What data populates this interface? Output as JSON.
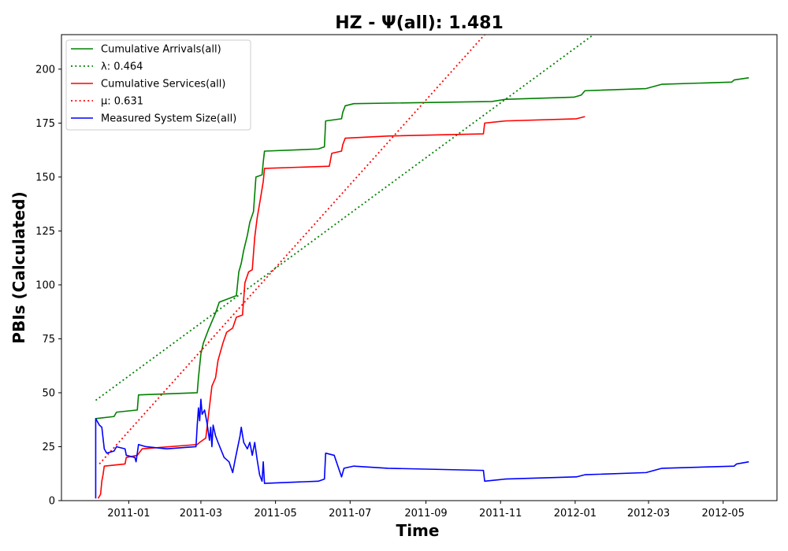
{
  "chart_data": {
    "type": "line",
    "title": "HZ -  Ψ(all): 1.481",
    "xlabel": "Time",
    "ylabel": "PBIs (Calculated)",
    "x_range": [
      "2010-11-07",
      "2012-06-14"
    ],
    "ylim": [
      0,
      216
    ],
    "x_ticks": [
      "2011-01-01",
      "2011-03-01",
      "2011-05-01",
      "2011-07-01",
      "2011-09-01",
      "2011-11-01",
      "2012-01-01",
      "2012-03-01",
      "2012-05-01"
    ],
    "x_tick_labels": [
      "2011-01",
      "2011-03",
      "2011-05",
      "2011-07",
      "2011-09",
      "2011-11",
      "2012-01",
      "2012-03",
      "2012-05"
    ],
    "y_ticks": [
      0,
      25,
      50,
      75,
      100,
      125,
      150,
      175,
      200
    ],
    "y_tick_labels": [
      "0",
      "25",
      "50",
      "75",
      "100",
      "125",
      "150",
      "175",
      "200"
    ],
    "grid": false,
    "legend_position": "top-left",
    "series": [
      {
        "name": "Cumulative Arrivals(all)",
        "color": "#008000",
        "style": "solid",
        "points": [
          [
            "2010-12-05",
            38
          ],
          [
            "2010-12-20",
            39
          ],
          [
            "2010-12-22",
            41
          ],
          [
            "2011-01-08",
            42
          ],
          [
            "2011-01-09",
            49
          ],
          [
            "2011-02-26",
            50
          ],
          [
            "2011-02-27",
            57
          ],
          [
            "2011-03-01",
            68
          ],
          [
            "2011-03-03",
            73
          ],
          [
            "2011-03-07",
            79
          ],
          [
            "2011-03-13",
            87
          ],
          [
            "2011-03-16",
            92
          ],
          [
            "2011-03-30",
            95
          ],
          [
            "2011-04-01",
            106
          ],
          [
            "2011-04-03",
            110
          ],
          [
            "2011-04-05",
            116
          ],
          [
            "2011-04-08",
            123
          ],
          [
            "2011-04-10",
            129
          ],
          [
            "2011-04-13",
            134
          ],
          [
            "2011-04-15",
            150
          ],
          [
            "2011-04-20",
            151
          ],
          [
            "2011-04-21",
            157
          ],
          [
            "2011-04-22",
            162
          ],
          [
            "2011-06-05",
            163
          ],
          [
            "2011-06-10",
            164
          ],
          [
            "2011-06-11",
            176
          ],
          [
            "2011-06-24",
            177
          ],
          [
            "2011-06-25",
            180
          ],
          [
            "2011-06-27",
            183
          ],
          [
            "2011-07-04",
            184
          ],
          [
            "2011-10-25",
            185
          ],
          [
            "2011-11-05",
            186
          ],
          [
            "2011-12-31",
            187
          ],
          [
            "2012-01-06",
            188
          ],
          [
            "2012-01-09",
            190
          ],
          [
            "2012-02-28",
            191
          ],
          [
            "2012-03-12",
            193
          ],
          [
            "2012-05-08",
            194
          ],
          [
            "2012-05-10",
            195
          ],
          [
            "2012-05-22",
            196
          ]
        ]
      },
      {
        "name": "λ: 0.464",
        "color": "#008000",
        "style": "dotted",
        "points": [
          [
            "2010-12-05",
            46.5
          ],
          [
            "2012-01-16",
            216
          ]
        ]
      },
      {
        "name": "Cumulative Services(all)",
        "color": "#ff0000",
        "style": "solid",
        "points": [
          [
            "2010-12-07",
            1
          ],
          [
            "2010-12-09",
            3
          ],
          [
            "2010-12-10",
            9
          ],
          [
            "2010-12-11",
            12
          ],
          [
            "2010-12-12",
            16
          ],
          [
            "2010-12-29",
            17
          ],
          [
            "2010-12-30",
            20
          ],
          [
            "2011-01-08",
            21
          ],
          [
            "2011-01-12",
            24
          ],
          [
            "2011-02-26",
            26
          ],
          [
            "2011-02-28",
            27
          ],
          [
            "2011-03-05",
            29
          ],
          [
            "2011-03-10",
            53
          ],
          [
            "2011-03-13",
            57
          ],
          [
            "2011-03-15",
            65
          ],
          [
            "2011-03-19",
            73
          ],
          [
            "2011-03-22",
            78
          ],
          [
            "2011-03-27",
            80
          ],
          [
            "2011-03-30",
            85
          ],
          [
            "2011-04-04",
            86
          ],
          [
            "2011-04-06",
            101
          ],
          [
            "2011-04-09",
            106
          ],
          [
            "2011-04-12",
            107
          ],
          [
            "2011-04-14",
            122
          ],
          [
            "2011-04-16",
            131
          ],
          [
            "2011-04-19",
            141
          ],
          [
            "2011-04-21",
            148
          ],
          [
            "2011-04-22",
            154
          ],
          [
            "2011-06-14",
            155
          ],
          [
            "2011-06-16",
            161
          ],
          [
            "2011-06-24",
            162
          ],
          [
            "2011-06-25",
            165
          ],
          [
            "2011-06-27",
            168
          ],
          [
            "2011-08-01",
            169
          ],
          [
            "2011-10-18",
            170
          ],
          [
            "2011-10-19",
            175
          ],
          [
            "2011-11-05",
            176
          ],
          [
            "2012-01-02",
            177
          ],
          [
            "2012-01-09",
            178
          ]
        ]
      },
      {
        "name": "μ: 0.631",
        "color": "#ff0000",
        "style": "dotted",
        "points": [
          [
            "2010-12-08",
            17
          ],
          [
            "2011-10-19",
            216
          ]
        ]
      },
      {
        "name": "Measured System Size(all)",
        "color": "#0000ff",
        "style": "solid",
        "points": [
          [
            "2010-12-05",
            1
          ],
          [
            "2010-12-05",
            38
          ],
          [
            "2010-12-08",
            35
          ],
          [
            "2010-12-10",
            34
          ],
          [
            "2010-12-12",
            24
          ],
          [
            "2010-12-14",
            22
          ],
          [
            "2010-12-20",
            23
          ],
          [
            "2010-12-22",
            25
          ],
          [
            "2010-12-29",
            24
          ],
          [
            "2010-12-30",
            21
          ],
          [
            "2011-01-06",
            20
          ],
          [
            "2011-01-07",
            18
          ],
          [
            "2011-01-09",
            26
          ],
          [
            "2011-01-15",
            25
          ],
          [
            "2011-02-01",
            24
          ],
          [
            "2011-02-25",
            25
          ],
          [
            "2011-02-26",
            35
          ],
          [
            "2011-02-27",
            43
          ],
          [
            "2011-02-28",
            37
          ],
          [
            "2011-03-01",
            47
          ],
          [
            "2011-03-02",
            40
          ],
          [
            "2011-03-04",
            42
          ],
          [
            "2011-03-06",
            36
          ],
          [
            "2011-03-08",
            28
          ],
          [
            "2011-03-09",
            34
          ],
          [
            "2011-03-10",
            25
          ],
          [
            "2011-03-11",
            35
          ],
          [
            "2011-03-13",
            30
          ],
          [
            "2011-03-15",
            27
          ],
          [
            "2011-03-20",
            20
          ],
          [
            "2011-03-24",
            18
          ],
          [
            "2011-03-27",
            13
          ],
          [
            "2011-03-29",
            19
          ],
          [
            "2011-04-02",
            30
          ],
          [
            "2011-04-03",
            34
          ],
          [
            "2011-04-05",
            27
          ],
          [
            "2011-04-08",
            24
          ],
          [
            "2011-04-10",
            27
          ],
          [
            "2011-04-12",
            21
          ],
          [
            "2011-04-14",
            27
          ],
          [
            "2011-04-16",
            19
          ],
          [
            "2011-04-18",
            12
          ],
          [
            "2011-04-20",
            9
          ],
          [
            "2011-04-21",
            18
          ],
          [
            "2011-04-22",
            8
          ],
          [
            "2011-06-05",
            9
          ],
          [
            "2011-06-10",
            10
          ],
          [
            "2011-06-11",
            22
          ],
          [
            "2011-06-18",
            21
          ],
          [
            "2011-06-24",
            11
          ],
          [
            "2011-06-26",
            15
          ],
          [
            "2011-07-04",
            16
          ],
          [
            "2011-08-01",
            15
          ],
          [
            "2011-10-18",
            14
          ],
          [
            "2011-10-19",
            9
          ],
          [
            "2011-11-05",
            10
          ],
          [
            "2012-01-02",
            11
          ],
          [
            "2012-01-09",
            12
          ],
          [
            "2012-02-28",
            13
          ],
          [
            "2012-03-12",
            15
          ],
          [
            "2012-05-10",
            16
          ],
          [
            "2012-05-12",
            17
          ],
          [
            "2012-05-22",
            18
          ]
        ]
      }
    ]
  }
}
